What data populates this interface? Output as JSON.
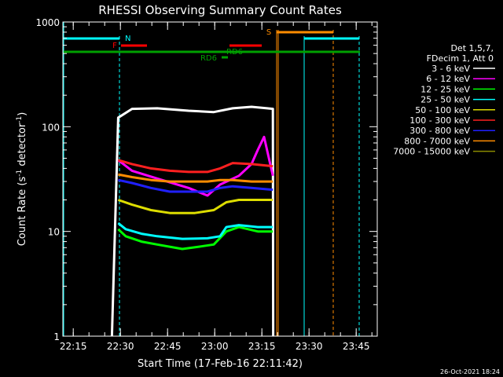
{
  "chart_data": {
    "type": "line",
    "title": "RHESSI Observing Summary Count Rates",
    "xlabel": "Start Time (17-Feb-16 22:11:42)",
    "ylabel_main": "Count Rate (s",
    "ylabel_sup1": "-1",
    "ylabel_mid": " detector",
    "ylabel_sup2": "-1",
    "ylabel_end": ")",
    "x_unit": "minutes since 22:11:42",
    "xlim": [
      0,
      100
    ],
    "ylim": [
      1,
      1000
    ],
    "yscale": "log",
    "xticks": [
      {
        "v": 3.3,
        "label": "22:15"
      },
      {
        "v": 18.3,
        "label": "22:30"
      },
      {
        "v": 33.3,
        "label": "22:45"
      },
      {
        "v": 48.3,
        "label": "23:00"
      },
      {
        "v": 63.3,
        "label": "23:15"
      },
      {
        "v": 78.3,
        "label": "23:30"
      },
      {
        "v": 93.3,
        "label": "23:45"
      }
    ],
    "yticks": [
      {
        "v": 1,
        "label": "1"
      },
      {
        "v": 10,
        "label": "10"
      },
      {
        "v": 100,
        "label": "100"
      },
      {
        "v": 1000,
        "label": "1000"
      }
    ],
    "legend_header": [
      "Det 1,5,7,",
      "FDecim 1, Att 0"
    ],
    "series": [
      {
        "name": "3 - 6 keV",
        "color": "#ffffff",
        "points": [
          [
            15.6,
            1
          ],
          [
            17.6,
            122
          ],
          [
            22,
            148
          ],
          [
            30,
            150
          ],
          [
            40,
            142
          ],
          [
            48,
            138
          ],
          [
            54,
            150
          ],
          [
            60,
            155
          ],
          [
            65,
            150
          ],
          [
            66.8,
            148
          ],
          [
            66.9,
            1
          ]
        ]
      },
      {
        "name": "6 - 12 keV",
        "color": "#ff00ff",
        "points": [
          [
            17.6,
            48
          ],
          [
            22,
            38
          ],
          [
            30,
            32
          ],
          [
            40,
            26
          ],
          [
            46,
            22
          ],
          [
            50,
            28
          ],
          [
            56,
            34
          ],
          [
            60,
            44
          ],
          [
            62,
            60
          ],
          [
            64,
            80
          ],
          [
            66.8,
            34
          ]
        ]
      },
      {
        "name": "12 - 25 keV",
        "color": "#00ff00",
        "points": [
          [
            17.6,
            10.5
          ],
          [
            20,
            9
          ],
          [
            25,
            8
          ],
          [
            30,
            7.5
          ],
          [
            38,
            6.8
          ],
          [
            44,
            7.2
          ],
          [
            48,
            7.5
          ],
          [
            52,
            10
          ],
          [
            56,
            11
          ],
          [
            62,
            10
          ],
          [
            66.8,
            10
          ]
        ]
      },
      {
        "name": "25 - 50 keV",
        "color": "#00ffff",
        "points": [
          [
            17.6,
            12
          ],
          [
            20,
            10.5
          ],
          [
            25,
            9.5
          ],
          [
            30,
            9
          ],
          [
            38,
            8.5
          ],
          [
            46,
            8.6
          ],
          [
            50,
            9
          ],
          [
            52,
            11
          ],
          [
            56,
            11.5
          ],
          [
            62,
            11
          ],
          [
            66.8,
            11
          ]
        ]
      },
      {
        "name": "50 - 100 keV",
        "color": "#dddd00",
        "points": [
          [
            17.6,
            20
          ],
          [
            22,
            18
          ],
          [
            28,
            16
          ],
          [
            34,
            15
          ],
          [
            42,
            15
          ],
          [
            48,
            16
          ],
          [
            52,
            19
          ],
          [
            56,
            20
          ],
          [
            62,
            20
          ],
          [
            66.8,
            20
          ]
        ]
      },
      {
        "name": "100 - 300 keV",
        "color": "#ff2020",
        "points": [
          [
            17.6,
            48
          ],
          [
            22,
            44
          ],
          [
            28,
            40
          ],
          [
            34,
            38
          ],
          [
            40,
            37
          ],
          [
            46,
            37
          ],
          [
            50,
            40
          ],
          [
            54,
            45
          ],
          [
            60,
            44
          ],
          [
            66.8,
            42
          ]
        ]
      },
      {
        "name": "300 - 800 keV",
        "color": "#2020ff",
        "points": [
          [
            17.6,
            31
          ],
          [
            22,
            29
          ],
          [
            28,
            26
          ],
          [
            34,
            24
          ],
          [
            40,
            24
          ],
          [
            46,
            24
          ],
          [
            50,
            26
          ],
          [
            54,
            27
          ],
          [
            60,
            26
          ],
          [
            66.8,
            25
          ]
        ]
      },
      {
        "name": "800 - 7000 keV",
        "color": "#ff8c00",
        "points": [
          [
            17.6,
            35
          ],
          [
            22,
            33
          ],
          [
            28,
            31
          ],
          [
            34,
            30
          ],
          [
            40,
            30
          ],
          [
            46,
            30
          ],
          [
            50,
            31
          ],
          [
            54,
            31
          ],
          [
            60,
            30
          ],
          [
            66.8,
            30
          ]
        ]
      },
      {
        "name": "7000 - 15000 keV",
        "color": "#8b8b00",
        "points": []
      }
    ],
    "flags": [
      {
        "label": "N",
        "color": "#00ffff"
      },
      {
        "label": "F",
        "color": "#ff0000"
      },
      {
        "label": "S",
        "color": "#ff8c00"
      },
      {
        "label": "RD6",
        "color": "#00a000"
      },
      {
        "label": "RD6",
        "color": "#00a000"
      }
    ],
    "timestamp": "26-Oct-2021 18:24"
  }
}
